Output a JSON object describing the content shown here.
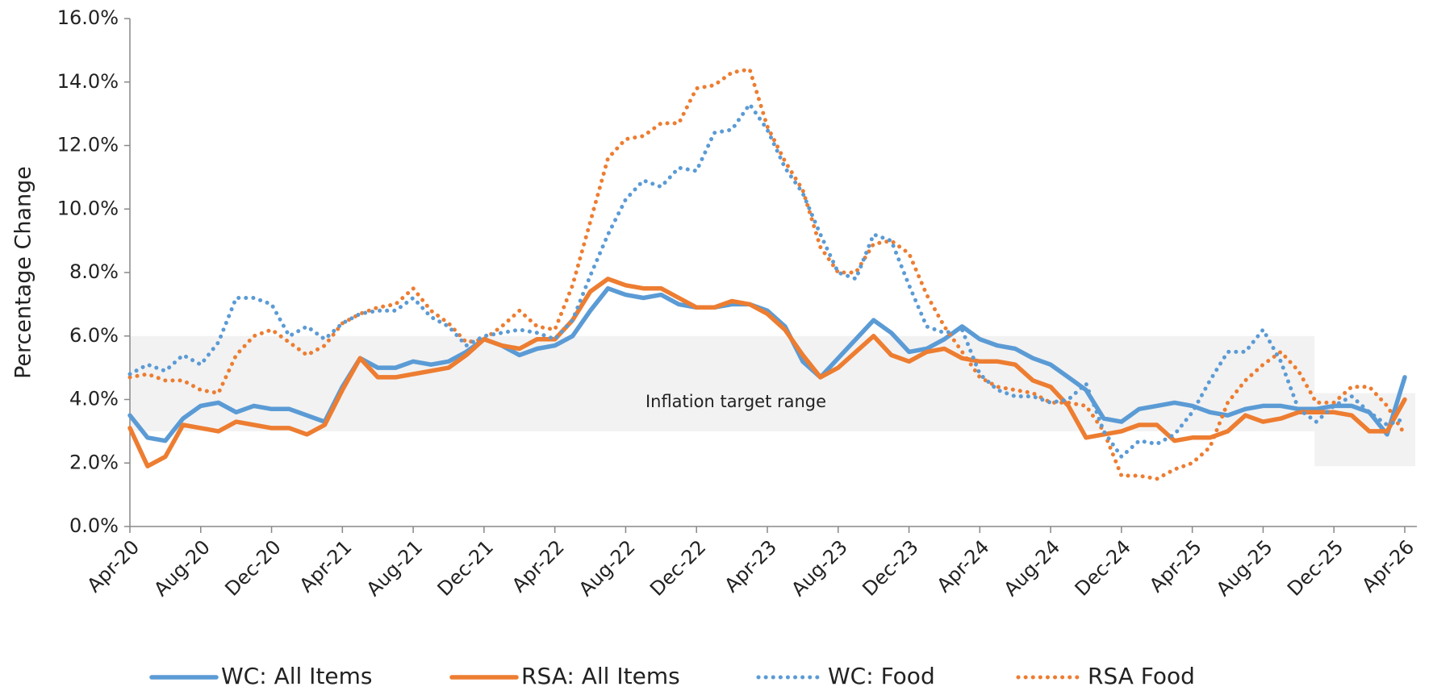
{
  "chart_data": {
    "type": "line",
    "y_label": "Percentage Change",
    "annotation": "Inflation target range",
    "categories": [
      "Apr-20",
      null,
      null,
      null,
      "Aug-20",
      null,
      null,
      null,
      "Dec-20",
      null,
      null,
      null,
      "Apr-21",
      null,
      null,
      null,
      "Aug-21",
      null,
      null,
      null,
      "Dec-21",
      null,
      null,
      null,
      "Apr-22",
      null,
      null,
      null,
      "Aug-22",
      null,
      null,
      null,
      "Dec-22",
      null,
      null,
      null,
      "Apr-23",
      null,
      null,
      null,
      "Aug-23",
      null,
      null,
      null,
      "Dec-23",
      null,
      null,
      null,
      "Apr-24",
      null,
      null,
      null,
      "Aug-24",
      null,
      null,
      null,
      "Dec-24",
      null,
      null,
      null,
      "Apr-25",
      null,
      null,
      null,
      "Aug-25",
      null,
      null,
      null,
      "Dec-25",
      null,
      null,
      null,
      "Apr-26"
    ],
    "ylim": [
      0,
      16
    ],
    "yticks": [
      {
        "value": 0,
        "label": "0.0%"
      },
      {
        "value": 2,
        "label": "2.0%"
      },
      {
        "value": 4,
        "label": "4.0%"
      },
      {
        "value": 6,
        "label": "6.0%"
      },
      {
        "value": 8,
        "label": "8.0%"
      },
      {
        "value": 10,
        "label": "10.0%"
      },
      {
        "value": 12,
        "label": "12.0%"
      },
      {
        "value": 14,
        "label": "14.0%"
      },
      {
        "value": 16,
        "label": "16.0%"
      }
    ],
    "target_bands": [
      {
        "start": 0,
        "end": 67,
        "low": 3,
        "high": 6
      },
      {
        "start": 67,
        "end": 73,
        "low": 1.9,
        "high": 4.2
      }
    ],
    "series": [
      {
        "name": "WC: All Items",
        "color": "#5b9bd5",
        "style": "solid",
        "values": [
          3.5,
          2.8,
          2.7,
          3.4,
          3.8,
          3.9,
          3.6,
          3.8,
          3.7,
          3.7,
          3.5,
          3.3,
          4.4,
          5.3,
          5.0,
          5.0,
          5.2,
          5.1,
          5.2,
          5.5,
          5.9,
          5.7,
          5.4,
          5.6,
          5.7,
          6.0,
          6.8,
          7.5,
          7.3,
          7.2,
          7.3,
          7.0,
          6.9,
          6.9,
          7.0,
          7.0,
          6.8,
          6.3,
          5.2,
          4.7,
          5.3,
          5.9,
          6.5,
          6.1,
          5.5,
          5.6,
          5.9,
          6.3,
          5.9,
          5.7,
          5.6,
          5.3,
          5.1,
          4.7,
          4.3,
          3.4,
          3.3,
          3.7,
          3.8,
          3.9,
          3.8,
          3.6,
          3.5,
          3.7,
          3.8,
          3.8,
          3.7,
          3.7,
          3.8,
          3.8,
          3.6,
          2.9,
          4.7
        ]
      },
      {
        "name": "RSA: All Items",
        "color": "#ed7d31",
        "style": "solid",
        "values": [
          3.1,
          1.9,
          2.2,
          3.2,
          3.1,
          3.0,
          3.3,
          3.2,
          3.1,
          3.1,
          2.9,
          3.2,
          4.3,
          5.3,
          4.7,
          4.7,
          4.8,
          4.9,
          5.0,
          5.4,
          5.9,
          5.7,
          5.6,
          5.9,
          5.9,
          6.5,
          7.4,
          7.8,
          7.6,
          7.5,
          7.5,
          7.2,
          6.9,
          6.9,
          7.1,
          7.0,
          6.7,
          6.2,
          5.4,
          4.7,
          5.0,
          5.5,
          6.0,
          5.4,
          5.2,
          5.5,
          5.6,
          5.3,
          5.2,
          5.2,
          5.1,
          4.6,
          4.4,
          3.8,
          2.8,
          2.9,
          3.0,
          3.2,
          3.2,
          2.7,
          2.8,
          2.8,
          3.0,
          3.5,
          3.3,
          3.4,
          3.6,
          3.6,
          3.6,
          3.5,
          3.0,
          3.0,
          4.0
        ]
      },
      {
        "name": "WC: Food",
        "color": "#5b9bd5",
        "style": "dotted",
        "values": [
          4.8,
          5.1,
          4.9,
          5.4,
          5.1,
          5.8,
          7.2,
          7.2,
          7.0,
          6.0,
          6.3,
          5.9,
          6.4,
          6.7,
          6.8,
          6.8,
          7.2,
          6.6,
          6.3,
          5.7,
          6.0,
          6.1,
          6.2,
          6.1,
          5.9,
          6.5,
          7.9,
          9.2,
          10.3,
          10.9,
          10.7,
          11.3,
          11.2,
          12.4,
          12.5,
          13.3,
          12.5,
          11.3,
          10.5,
          9.2,
          8.0,
          7.8,
          9.2,
          9.0,
          7.6,
          6.3,
          6.1,
          6.2,
          4.8,
          4.3,
          4.1,
          4.1,
          3.9,
          4.0,
          4.5,
          3.0,
          2.2,
          2.7,
          2.6,
          2.9,
          3.6,
          4.6,
          5.5,
          5.5,
          6.2,
          5.2,
          3.7,
          3.3,
          3.8,
          4.1,
          3.6,
          3.2,
          3.4
        ]
      },
      {
        "name": "RSA Food",
        "color": "#ed7d31",
        "style": "dotted",
        "values": [
          4.7,
          4.8,
          4.6,
          4.6,
          4.3,
          4.2,
          5.4,
          6.0,
          6.2,
          5.8,
          5.4,
          5.7,
          6.4,
          6.7,
          6.9,
          7.0,
          7.5,
          6.8,
          6.4,
          5.8,
          5.9,
          6.3,
          6.8,
          6.3,
          6.2,
          7.6,
          9.6,
          11.6,
          12.2,
          12.3,
          12.7,
          12.7,
          13.8,
          13.9,
          14.3,
          14.4,
          12.6,
          11.5,
          10.6,
          8.8,
          8.0,
          8.0,
          8.9,
          9.0,
          8.6,
          7.3,
          6.3,
          5.5,
          4.7,
          4.4,
          4.3,
          4.2,
          3.9,
          3.9,
          3.8,
          3.0,
          1.6,
          1.6,
          1.5,
          1.8,
          2.0,
          2.5,
          3.9,
          4.6,
          5.1,
          5.5,
          4.9,
          3.9,
          3.9,
          4.4,
          4.4,
          3.8,
          2.9
        ]
      }
    ]
  }
}
